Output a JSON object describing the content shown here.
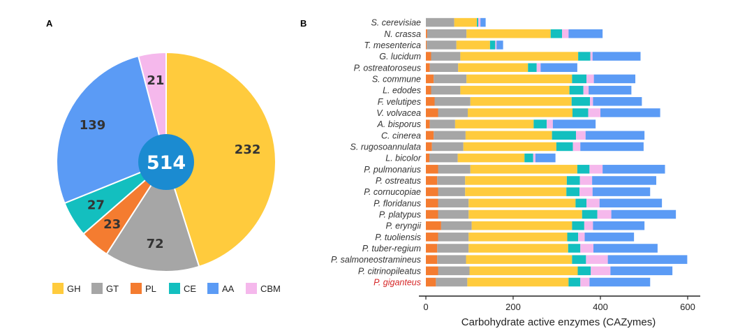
{
  "categories": [
    "GH",
    "GT",
    "PL",
    "CE",
    "AA",
    "CBM"
  ],
  "colors": {
    "GH": "#FFCB3D",
    "GT": "#A6A6A6",
    "PL": "#F47C30",
    "CE": "#13BFBF",
    "AA": "#5B9BF5",
    "CBM": "#F5B8EC",
    "center": "#1B8BD1",
    "highlight_label": "#D62728"
  },
  "chart_data": [
    {
      "panel": "A",
      "type": "pie",
      "title": "A",
      "center_label": "514",
      "slices": [
        {
          "category": "GH",
          "value": 232,
          "label": "232"
        },
        {
          "category": "GT",
          "value": 72,
          "label": "72"
        },
        {
          "category": "PL",
          "value": 23,
          "label": "23"
        },
        {
          "category": "CE",
          "value": 27,
          "label": "27"
        },
        {
          "category": "AA",
          "value": 139,
          "label": "139"
        },
        {
          "category": "CBM",
          "value": 21,
          "label": "21"
        }
      ],
      "legend": [
        "GH",
        "GT",
        "PL",
        "CE",
        "AA",
        "CBM"
      ],
      "legend_position": "bottom"
    },
    {
      "panel": "B",
      "type": "bar",
      "orientation": "horizontal",
      "stacked": true,
      "title": "B",
      "xlabel": "Carbohydrate active enzymes (CAZymes)",
      "xlim": [
        0,
        600
      ],
      "xticks": [
        0,
        200,
        400,
        600
      ],
      "highlighted_species": "P. giganteus",
      "species": [
        "S. cerevisiae",
        "N. crassa",
        "T. mesenterica",
        "G. lucidum",
        "P. ostreatoroseus",
        "S. commune",
        "L. edodes",
        "F. velutipes",
        "V. volvacea",
        "A. bisporus",
        "C. cinerea",
        "S. rugosoannulata",
        "L. bicolor",
        "P. pulmonarius",
        "P. ostreatus",
        "P. cornucopiae",
        "P. floridanus",
        "P. platypus",
        "P. eryngii",
        "P. tuoliensis",
        "P. tuber-regium",
        "P. salmoneostramineus",
        "P. citrinopileatus",
        "P. giganteus"
      ],
      "series": [
        {
          "name": "PL",
          "values": [
            0,
            3,
            2,
            12,
            9,
            18,
            12,
            20,
            28,
            9,
            18,
            14,
            8,
            28,
            26,
            28,
            28,
            28,
            35,
            28,
            26,
            26,
            28,
            23
          ]
        },
        {
          "name": "GT",
          "values": [
            65,
            90,
            68,
            67,
            65,
            75,
            67,
            82,
            68,
            58,
            73,
            72,
            65,
            74,
            64,
            62,
            70,
            70,
            70,
            70,
            72,
            66,
            72,
            72
          ]
        },
        {
          "name": "GH",
          "values": [
            52,
            193,
            77,
            270,
            160,
            242,
            250,
            232,
            240,
            180,
            198,
            213,
            153,
            245,
            233,
            232,
            245,
            260,
            230,
            226,
            228,
            243,
            248,
            232
          ]
        },
        {
          "name": "CE",
          "values": [
            3,
            26,
            12,
            28,
            20,
            33,
            32,
            42,
            36,
            30,
            55,
            38,
            20,
            28,
            30,
            30,
            25,
            35,
            28,
            25,
            28,
            32,
            30,
            27
          ]
        },
        {
          "name": "CBM",
          "values": [
            5,
            15,
            3,
            5,
            9,
            17,
            12,
            7,
            28,
            14,
            22,
            17,
            5,
            30,
            28,
            30,
            30,
            32,
            20,
            15,
            30,
            50,
            45,
            21
          ]
        },
        {
          "name": "AA",
          "values": [
            12,
            78,
            15,
            110,
            84,
            95,
            98,
            112,
            137,
            98,
            135,
            145,
            46,
            143,
            147,
            132,
            143,
            148,
            118,
            113,
            147,
            182,
            142,
            139
          ]
        }
      ]
    }
  ]
}
